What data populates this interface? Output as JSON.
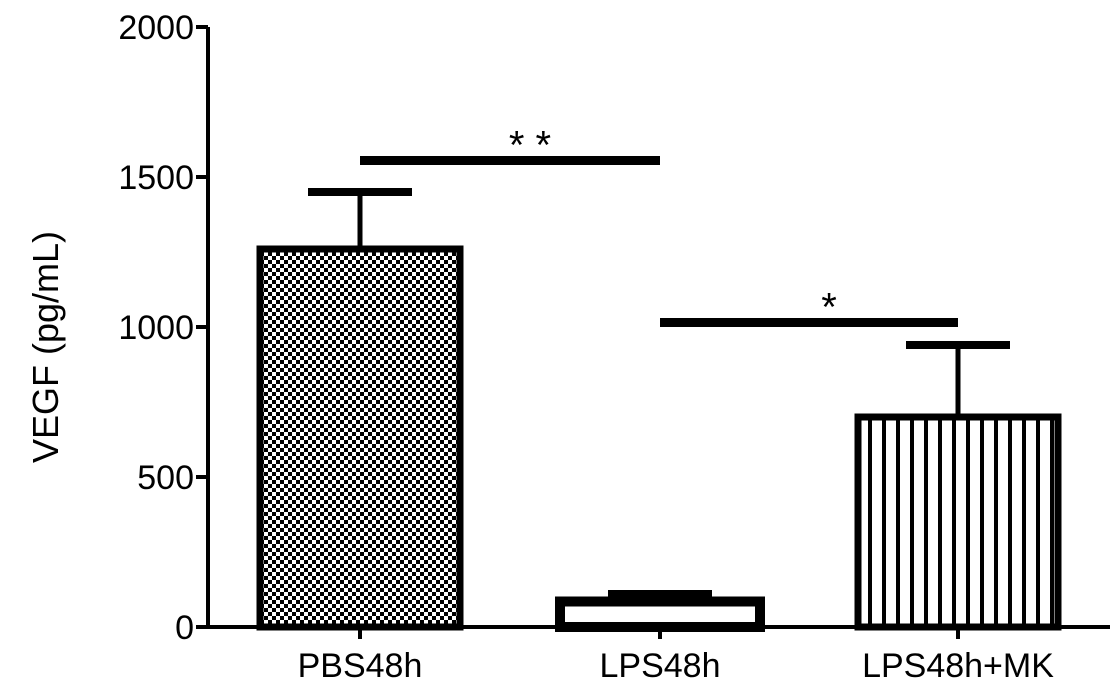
{
  "chart_data": {
    "type": "bar",
    "title": "",
    "xlabel": "",
    "ylabel": "VEGF (pg/mL)",
    "ylim": [
      0,
      2000
    ],
    "yticks": [
      0,
      500,
      1000,
      1500,
      2000
    ],
    "ytick_labels": [
      "0",
      "500",
      "1000",
      "1500",
      "2000"
    ],
    "categories": [
      "PBS48h",
      "LPS48h",
      "LPS48h+MK"
    ],
    "values": [
      1260,
      85,
      700
    ],
    "error_upper": [
      1450,
      110,
      940
    ],
    "fill_patterns": [
      "checker-dots",
      "solid-outline",
      "vertical-stripes"
    ],
    "grid": false,
    "colors": {
      "bar_stroke": "#000000",
      "background": "#ffffff"
    },
    "annotations": [
      {
        "label": "* *",
        "from": "PBS48h",
        "to": "LPS48h",
        "y": 1555
      },
      {
        "label": "*",
        "from": "LPS48h",
        "to": "LPS48h+MK",
        "y": 1015
      }
    ]
  }
}
